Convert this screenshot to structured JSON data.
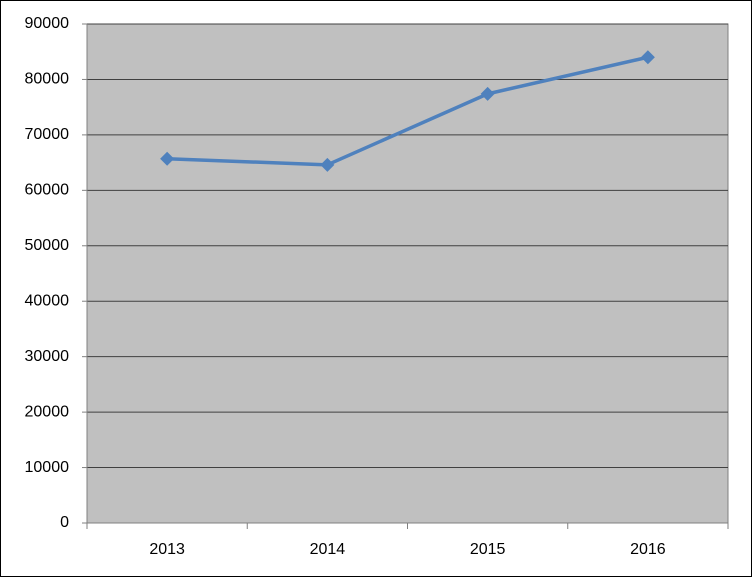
{
  "chart_data": {
    "type": "line",
    "categories": [
      "2013",
      "2014",
      "2015",
      "2016"
    ],
    "series": [
      {
        "color": "#4f81bd",
        "values": [
          65700,
          64600,
          77400,
          84000
        ]
      }
    ],
    "ylim": [
      0,
      90000
    ],
    "yticks": [
      0,
      10000,
      20000,
      30000,
      40000,
      50000,
      60000,
      70000,
      80000,
      90000
    ],
    "grid": true,
    "plot_background": "#c0c0c0"
  }
}
